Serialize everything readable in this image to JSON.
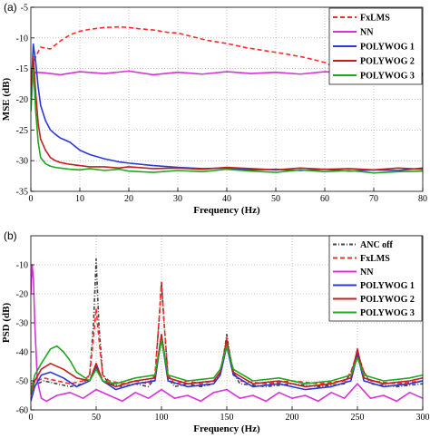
{
  "chart_data": [
    {
      "type": "line",
      "panel_label": "(a)",
      "xlabel": "Frequency (Hz)",
      "ylabel": "MSE (dB)",
      "xlim": [
        0,
        80
      ],
      "ylim": [
        -35,
        -5
      ],
      "xticks": [
        0,
        10,
        20,
        30,
        40,
        50,
        60,
        70,
        80
      ],
      "yticks": [
        -35,
        -30,
        -25,
        -20,
        -15,
        -10,
        -5
      ],
      "grid": true,
      "legend_position": "top-right",
      "series": [
        {
          "name": "FxLMS",
          "color": "#ff2a2a",
          "dash": "5,3",
          "x": [
            0,
            1,
            2,
            4,
            6,
            8,
            10,
            12,
            15,
            18,
            20,
            22,
            25,
            28,
            30,
            33,
            36,
            40,
            44,
            48,
            52,
            56,
            60,
            62,
            64,
            66,
            70,
            75,
            80
          ],
          "y": [
            -16,
            -13,
            -11.5,
            -11.8,
            -10.5,
            -9.5,
            -8.9,
            -8.6,
            -8.3,
            -8.2,
            -8.3,
            -8.5,
            -8.7,
            -9.1,
            -9.2,
            -9.8,
            -10.4,
            -10.9,
            -11.6,
            -12.1,
            -12.6,
            -13.2,
            -14.0,
            -14.8,
            -15.4,
            -15.8,
            -16.0,
            -16.1,
            -16.1
          ]
        },
        {
          "name": "NN",
          "color": "#d633d6",
          "dash": "",
          "x": [
            0,
            1,
            3,
            6,
            10,
            15,
            20,
            25,
            30,
            35,
            40,
            45,
            50,
            55,
            60,
            65,
            70,
            75,
            80
          ],
          "y": [
            -16.6,
            -15.6,
            -15.7,
            -16.0,
            -15.5,
            -15.8,
            -15.4,
            -16.0,
            -15.6,
            -15.9,
            -15.5,
            -15.8,
            -15.6,
            -15.9,
            -15.5,
            -15.8,
            -15.7,
            -15.9,
            -15.8
          ]
        },
        {
          "name": "POLYWOG 1",
          "color": "#2a39d6",
          "dash": "",
          "x": [
            0,
            0.5,
            1,
            1.5,
            2,
            3,
            4,
            5,
            6,
            8,
            10,
            12,
            15,
            18,
            20,
            25,
            30,
            35,
            40,
            45,
            50,
            55,
            60,
            65,
            70,
            75,
            80
          ],
          "y": [
            -20,
            -11,
            -14,
            -18,
            -21,
            -23.5,
            -25,
            -25.7,
            -26.3,
            -27.0,
            -28.3,
            -29.0,
            -29.7,
            -30.2,
            -30.4,
            -30.8,
            -31.1,
            -31.3,
            -31.2,
            -31.5,
            -31.4,
            -31.6,
            -31.4,
            -31.7,
            -31.5,
            -31.6,
            -31.2
          ]
        },
        {
          "name": "POLYWOG 2",
          "color": "#c21f1f",
          "dash": "",
          "x": [
            0,
            0.5,
            1,
            1.5,
            2,
            3,
            4,
            5,
            6,
            8,
            10,
            12,
            15,
            18,
            20,
            25,
            30,
            35,
            40,
            45,
            50,
            55,
            60,
            65,
            70,
            75,
            80
          ],
          "y": [
            -18,
            -13,
            -19,
            -24,
            -26.5,
            -28.3,
            -29.5,
            -30.0,
            -30.3,
            -30.6,
            -30.8,
            -31.0,
            -31.0,
            -31.2,
            -31.0,
            -31.3,
            -31.2,
            -31.4,
            -31.1,
            -31.3,
            -31.5,
            -31.2,
            -31.4,
            -31.3,
            -31.5,
            -31.2,
            -31.4
          ]
        },
        {
          "name": "POLYWOG 3",
          "color": "#1fa81f",
          "dash": "",
          "x": [
            0,
            0.5,
            1,
            1.5,
            2,
            3,
            4,
            5,
            6,
            8,
            10,
            12,
            15,
            18,
            20,
            25,
            30,
            35,
            40,
            45,
            50,
            55,
            60,
            65,
            70,
            75,
            80
          ],
          "y": [
            -22,
            -15,
            -22,
            -27,
            -29.5,
            -30.5,
            -30.9,
            -31.1,
            -31.2,
            -31.4,
            -31.5,
            -31.3,
            -31.6,
            -31.4,
            -31.7,
            -31.9,
            -31.6,
            -31.8,
            -31.4,
            -31.7,
            -31.9,
            -31.5,
            -31.8,
            -31.6,
            -32.0,
            -31.8,
            -31.7
          ]
        }
      ]
    },
    {
      "type": "line",
      "panel_label": "(b)",
      "xlabel": "Frequency (Hz)",
      "ylabel": "PSD (dB)",
      "xlim": [
        0,
        300
      ],
      "ylim": [
        -60,
        0
      ],
      "xticks": [
        0,
        50,
        100,
        150,
        200,
        250,
        300
      ],
      "yticks": [
        -60,
        -50,
        -40,
        -30,
        -20,
        -10
      ],
      "grid": true,
      "legend_position": "top-right",
      "series": [
        {
          "name": "ANC off",
          "color": "#444444",
          "dash": "4,2,1,2",
          "x": [
            0,
            5,
            10,
            20,
            30,
            40,
            45,
            48,
            50,
            52,
            55,
            60,
            70,
            80,
            90,
            95,
            98,
            100,
            102,
            105,
            110,
            120,
            130,
            140,
            145,
            148,
            150,
            152,
            155,
            160,
            180,
            200,
            220,
            240,
            245,
            248,
            250,
            252,
            255,
            260,
            280,
            300
          ],
          "y": [
            -52,
            -51,
            -50,
            -51,
            -52,
            -51,
            -48,
            -30,
            -8,
            -30,
            -48,
            -51,
            -52,
            -51,
            -52,
            -49,
            -30,
            -16,
            -30,
            -49,
            -52,
            -51,
            -52,
            -51,
            -47,
            -40,
            -34,
            -40,
            -47,
            -51,
            -52,
            -51,
            -52,
            -51,
            -47,
            -43,
            -40,
            -43,
            -47,
            -51,
            -52,
            -51
          ]
        },
        {
          "name": "FxLMS",
          "color": "#ff2a2a",
          "dash": "5,3",
          "x": [
            0,
            5,
            10,
            20,
            30,
            40,
            45,
            48,
            50,
            52,
            55,
            60,
            70,
            80,
            90,
            95,
            98,
            100,
            102,
            105,
            110,
            120,
            130,
            140,
            145,
            148,
            150,
            152,
            155,
            160,
            180,
            200,
            220,
            240,
            245,
            248,
            250,
            252,
            255,
            260,
            280,
            300
          ],
          "y": [
            -51,
            -50,
            -49,
            -50,
            -51,
            -50,
            -48,
            -35,
            -25,
            -35,
            -48,
            -50,
            -51,
            -50,
            -51,
            -48,
            -30,
            -16,
            -30,
            -48,
            -51,
            -50,
            -51,
            -50,
            -47,
            -41,
            -35,
            -41,
            -47,
            -50,
            -51,
            -50,
            -51,
            -50,
            -47,
            -43,
            -40,
            -43,
            -47,
            -50,
            -51,
            -50
          ]
        },
        {
          "name": "NN",
          "color": "#d633d6",
          "dash": "",
          "x": [
            0,
            1,
            2,
            3,
            5,
            8,
            12,
            20,
            30,
            40,
            50,
            60,
            70,
            80,
            90,
            100,
            110,
            120,
            130,
            140,
            150,
            160,
            170,
            180,
            190,
            200,
            210,
            220,
            230,
            240,
            250,
            260,
            270,
            280,
            290,
            300
          ],
          "y": [
            -20,
            -10,
            -15,
            -30,
            -50,
            -56,
            -57,
            -55,
            -54,
            -56,
            -53,
            -55,
            -57,
            -54,
            -56,
            -53,
            -56,
            -55,
            -57,
            -54,
            -53,
            -56,
            -55,
            -57,
            -54,
            -56,
            -55,
            -57,
            -54,
            -56,
            -51,
            -56,
            -55,
            -57,
            -54,
            -56
          ]
        },
        {
          "name": "POLYWOG 1",
          "color": "#2a39d6",
          "dash": "",
          "x": [
            0,
            3,
            8,
            15,
            25,
            35,
            45,
            50,
            55,
            65,
            80,
            95,
            100,
            105,
            120,
            140,
            145,
            150,
            155,
            170,
            190,
            210,
            230,
            245,
            250,
            255,
            270,
            290,
            300
          ],
          "y": [
            -57,
            -52,
            -48,
            -47,
            -49,
            -52,
            -50,
            -45,
            -50,
            -53,
            -51,
            -50,
            -35,
            -50,
            -52,
            -51,
            -48,
            -38,
            -48,
            -52,
            -51,
            -53,
            -52,
            -50,
            -41,
            -50,
            -52,
            -51,
            -50
          ]
        },
        {
          "name": "POLYWOG 2",
          "color": "#c21f1f",
          "dash": "",
          "x": [
            0,
            3,
            8,
            15,
            25,
            35,
            45,
            50,
            55,
            65,
            80,
            95,
            100,
            105,
            120,
            140,
            145,
            150,
            155,
            170,
            190,
            210,
            230,
            245,
            250,
            255,
            270,
            290,
            300
          ],
          "y": [
            -55,
            -50,
            -46,
            -44,
            -46,
            -49,
            -50,
            -44,
            -50,
            -52,
            -50,
            -49,
            -34,
            -49,
            -51,
            -50,
            -47,
            -36,
            -47,
            -51,
            -50,
            -52,
            -51,
            -49,
            -39,
            -49,
            -51,
            -50,
            -49
          ]
        },
        {
          "name": "POLYWOG 3",
          "color": "#1fa81f",
          "dash": "",
          "x": [
            0,
            3,
            8,
            15,
            20,
            25,
            30,
            35,
            45,
            50,
            55,
            65,
            80,
            95,
            100,
            105,
            120,
            140,
            145,
            150,
            155,
            170,
            190,
            210,
            230,
            245,
            250,
            255,
            270,
            290,
            300
          ],
          "y": [
            -54,
            -48,
            -44,
            -39,
            -38,
            -40,
            -43,
            -47,
            -50,
            -46,
            -50,
            -51,
            -49,
            -48,
            -36,
            -48,
            -50,
            -49,
            -46,
            -38,
            -46,
            -50,
            -49,
            -51,
            -50,
            -48,
            -42,
            -48,
            -50,
            -49,
            -48
          ]
        }
      ]
    }
  ]
}
